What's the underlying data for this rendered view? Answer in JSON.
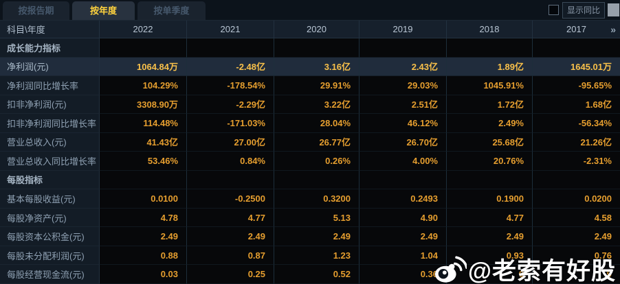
{
  "tabs": [
    {
      "label": "按报告期",
      "active": false
    },
    {
      "label": "按年度",
      "active": true
    },
    {
      "label": "按单季度",
      "active": false
    }
  ],
  "controls": {
    "show_yoy_label": "显示同比",
    "show_yoy_checked": false
  },
  "table": {
    "corner_label": "科目\\年度",
    "years": [
      "2022",
      "2021",
      "2020",
      "2019",
      "2018",
      "2017"
    ],
    "more_indicator": "»",
    "rows": [
      {
        "type": "section",
        "label": "成长能力指标",
        "values": [
          "",
          "",
          "",
          "",
          "",
          ""
        ]
      },
      {
        "type": "data",
        "label": "净利润(元)",
        "highlight": true,
        "values": [
          "1064.84万",
          "-2.48亿",
          "3.16亿",
          "2.43亿",
          "1.89亿",
          "1645.01万"
        ]
      },
      {
        "type": "data",
        "label": "净利润同比增长率",
        "values": [
          "104.29%",
          "-178.54%",
          "29.91%",
          "29.03%",
          "1045.91%",
          "-95.65%"
        ]
      },
      {
        "type": "data",
        "label": "扣非净利润(元)",
        "values": [
          "3308.90万",
          "-2.29亿",
          "3.22亿",
          "2.51亿",
          "1.72亿",
          "1.68亿"
        ]
      },
      {
        "type": "data",
        "label": "扣非净利润同比增长率",
        "values": [
          "114.48%",
          "-171.03%",
          "28.04%",
          "46.12%",
          "2.49%",
          "-56.34%"
        ]
      },
      {
        "type": "data",
        "label": "营业总收入(元)",
        "values": [
          "41.43亿",
          "27.00亿",
          "26.77亿",
          "26.70亿",
          "25.68亿",
          "21.26亿"
        ]
      },
      {
        "type": "data",
        "label": "营业总收入同比增长率",
        "values": [
          "53.46%",
          "0.84%",
          "0.26%",
          "4.00%",
          "20.76%",
          "-2.31%"
        ]
      },
      {
        "type": "section",
        "label": "每股指标",
        "values": [
          "",
          "",
          "",
          "",
          "",
          ""
        ]
      },
      {
        "type": "data",
        "label": "基本每股收益(元)",
        "values": [
          "0.0100",
          "-0.2500",
          "0.3200",
          "0.2493",
          "0.1900",
          "0.0200"
        ]
      },
      {
        "type": "data",
        "label": "每股净资产(元)",
        "values": [
          "4.78",
          "4.77",
          "5.13",
          "4.90",
          "4.77",
          "4.58"
        ]
      },
      {
        "type": "data",
        "label": "每股资本公积金(元)",
        "values": [
          "2.49",
          "2.49",
          "2.49",
          "2.49",
          "2.49",
          "2.49"
        ]
      },
      {
        "type": "data",
        "label": "每股未分配利润(元)",
        "values": [
          "0.88",
          "0.87",
          "1.23",
          "1.04",
          "0.93",
          "0.76"
        ]
      },
      {
        "type": "data",
        "label": "每股经营现金流(元)",
        "values": [
          "0.03",
          "0.25",
          "0.52",
          "0.36",
          "0",
          "9"
        ],
        "note": "2018/2017 cells partially obscured by watermark"
      }
    ]
  },
  "watermark": {
    "handle": "@老索有好股",
    "icon": "weibo-logo"
  },
  "colors": {
    "active_tab_text": "#ffd23e",
    "value_orange": "#e59e2f",
    "highlight_value": "#f8c04a",
    "highlight_row_bg": "#202c3c",
    "header_bg": "#16202c",
    "label_col_bg": "#131c26"
  }
}
